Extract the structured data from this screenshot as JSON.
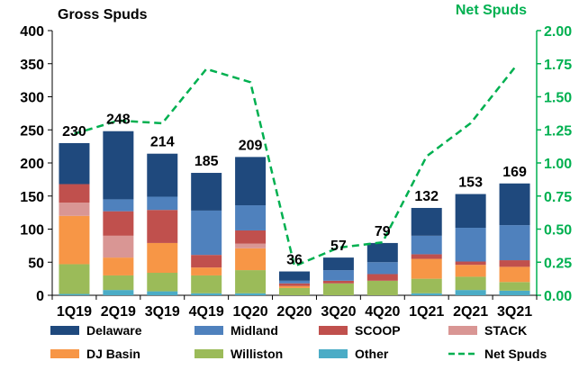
{
  "chart_data": {
    "type": "bar",
    "stacked": true,
    "title_left": "Gross Spuds",
    "title_right": "Net Spuds",
    "categories": [
      "1Q19",
      "2Q19",
      "3Q19",
      "4Q19",
      "1Q20",
      "2Q20",
      "3Q20",
      "4Q20",
      "1Q21",
      "2Q21",
      "3Q21"
    ],
    "ylim_left": [
      0,
      400
    ],
    "yticks_left": [
      "0",
      "50",
      "100",
      "150",
      "200",
      "250",
      "300",
      "350",
      "400"
    ],
    "ylim_right": [
      0,
      2.0
    ],
    "yticks_right": [
      "0.00",
      "0.25",
      "0.50",
      "0.75",
      "1.00",
      "1.25",
      "1.50",
      "1.75",
      "2.00"
    ],
    "totals": [
      "230",
      "248",
      "214",
      "185",
      "209",
      "36",
      "57",
      "79",
      "132",
      "153",
      "169"
    ],
    "series": [
      {
        "name": "Other",
        "color": "#4bacc6",
        "values": [
          2,
          8,
          6,
          3,
          3,
          0,
          0,
          0,
          3,
          8,
          7
        ]
      },
      {
        "name": "Williston",
        "color": "#9bbb59",
        "values": [
          45,
          22,
          28,
          27,
          35,
          11,
          18,
          22,
          22,
          20,
          13
        ]
      },
      {
        "name": "DJ Basin",
        "color": "#f79646",
        "values": [
          73,
          27,
          45,
          12,
          33,
          3,
          0,
          0,
          30,
          18,
          23
        ]
      },
      {
        "name": "STACK",
        "color": "#d99694",
        "values": [
          20,
          33,
          0,
          0,
          7,
          0,
          0,
          0,
          0,
          0,
          0
        ]
      },
      {
        "name": "SCOOP",
        "color": "#c0504d",
        "values": [
          28,
          37,
          50,
          19,
          20,
          4,
          4,
          10,
          7,
          5,
          10
        ]
      },
      {
        "name": "Midland",
        "color": "#4f81bd",
        "values": [
          0,
          18,
          20,
          67,
          38,
          4,
          16,
          18,
          28,
          51,
          53
        ]
      },
      {
        "name": "Delaware",
        "color": "#1f497d",
        "values": [
          62,
          103,
          65,
          57,
          73,
          14,
          19,
          29,
          42,
          51,
          63
        ]
      }
    ],
    "line": {
      "name": "Net Spuds",
      "color": "#00b050",
      "axis": "right",
      "values": [
        1.22,
        1.32,
        1.3,
        1.71,
        1.61,
        0.22,
        0.36,
        0.4,
        1.05,
        1.3,
        1.72
      ]
    },
    "legend": [
      "Delaware",
      "Midland",
      "SCOOP",
      "STACK",
      "DJ Basin",
      "Williston",
      "Other",
      "Net Spuds"
    ],
    "legend_position": "bottom"
  }
}
